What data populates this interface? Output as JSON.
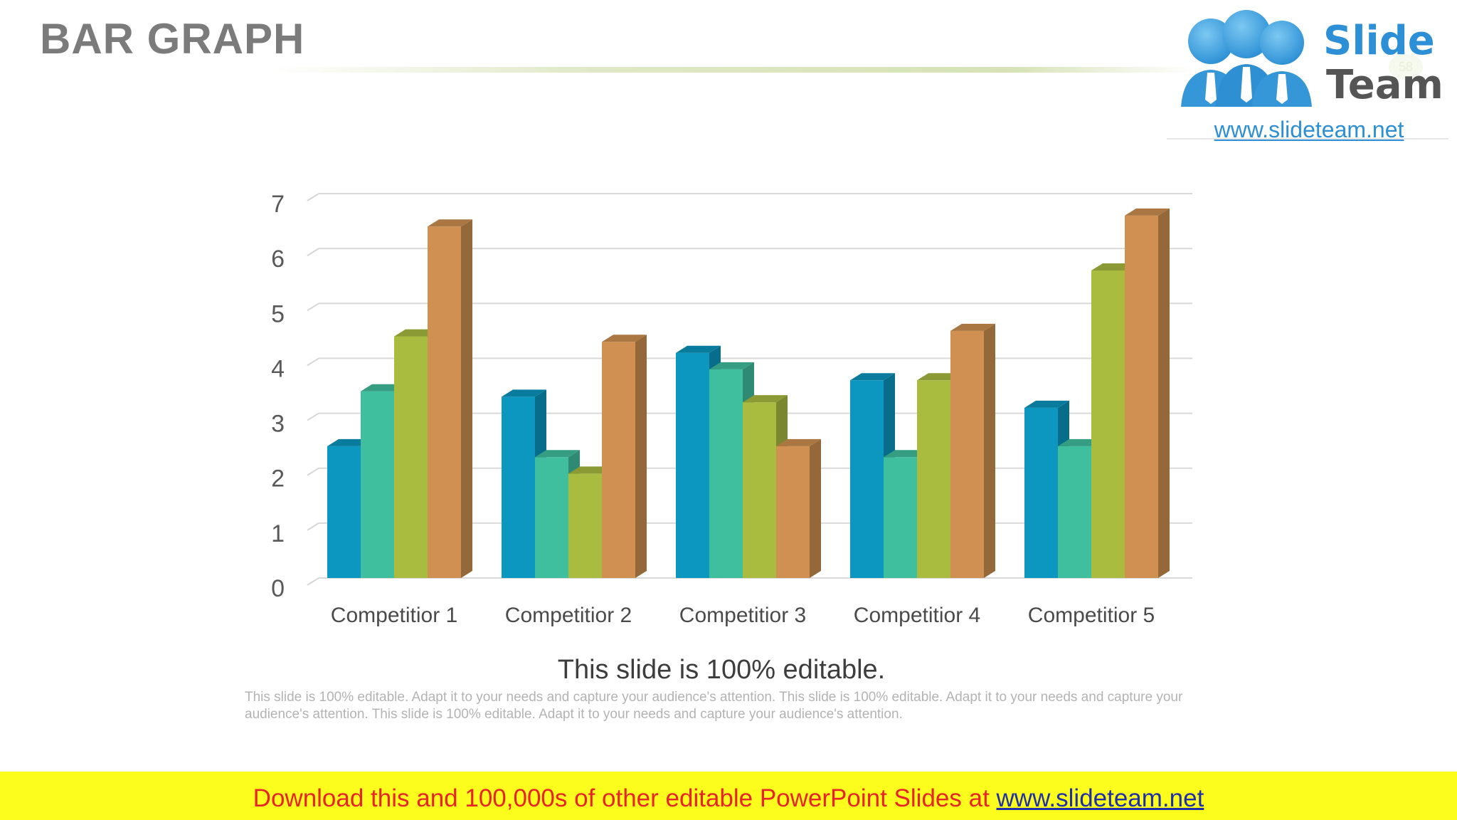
{
  "slide": {
    "title": "BAR GRAPH",
    "page_number": "58"
  },
  "logo": {
    "word1": "Slide",
    "word2": "Team",
    "url": "www.slideteam.net"
  },
  "caption": {
    "title": "This slide is 100% editable.",
    "body": "This slide is 100% editable. Adapt it to your needs and capture your audience's attention. This slide is 100% editable. Adapt it to your needs and capture your audience's attention. This slide is 100% editable. Adapt it to your needs and capture your audience's attention."
  },
  "banner": {
    "text": "Download this and 100,000s of other editable PowerPoint Slides at ",
    "link": "www.slideteam.net"
  },
  "chart_data": {
    "type": "bar",
    "style": "3d-clustered-column",
    "categories": [
      "Competitior 1",
      "Competitior 2",
      "Competitior 3",
      "Competitior 4",
      "Competitior 5"
    ],
    "series": [
      {
        "color": "#0b97bf",
        "values": [
          2.4,
          3.3,
          4.1,
          3.6,
          3.1
        ]
      },
      {
        "color": "#40bf9e",
        "values": [
          3.4,
          2.2,
          3.8,
          2.2,
          2.4
        ]
      },
      {
        "color": "#a9bc40",
        "values": [
          4.4,
          1.9,
          3.2,
          3.6,
          5.6
        ]
      },
      {
        "color": "#cf9051",
        "values": [
          6.4,
          4.3,
          2.4,
          4.5,
          6.6
        ]
      }
    ],
    "yticks": [
      0,
      1,
      2,
      3,
      4,
      5,
      6,
      7
    ],
    "ylim": [
      0,
      7
    ],
    "grid": true,
    "legend": "none"
  }
}
